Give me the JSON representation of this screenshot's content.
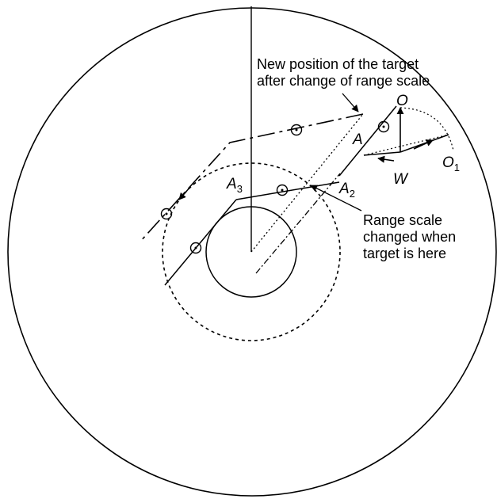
{
  "figure": {
    "annotations": {
      "new_position_line1": "New position of the target",
      "new_position_line2": "after change of range scale",
      "range_scale_line1": "Range scale",
      "range_scale_line2": "changed when",
      "range_scale_line3": "target is here"
    },
    "points": {
      "O": "O",
      "O1": "O",
      "O1_sub": "1",
      "A": "A",
      "W": "W",
      "A2": "A",
      "A2_sub": "2",
      "A3": "A",
      "A3_sub": "3"
    }
  },
  "colors": {
    "ink": "#000000",
    "background": "#ffffff"
  }
}
